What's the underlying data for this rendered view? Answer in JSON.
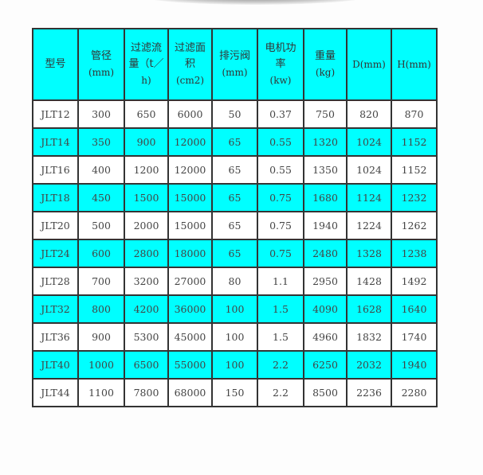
{
  "table": {
    "headers": [
      {
        "lines": [
          "型号"
        ]
      },
      {
        "lines": [
          "管径",
          "(mm)"
        ]
      },
      {
        "lines": [
          "过滤流",
          "量（t／",
          "h)"
        ]
      },
      {
        "lines": [
          "过滤面",
          "积",
          "(cm2)"
        ]
      },
      {
        "lines": [
          "排污阀",
          "(mm)"
        ]
      },
      {
        "lines": [
          "电机功",
          "率",
          "(kw)"
        ]
      },
      {
        "lines": [
          "重量",
          "(kg)"
        ]
      },
      {
        "lines": [
          "D(mm)"
        ]
      },
      {
        "lines": [
          "H(mm)"
        ]
      }
    ],
    "rows": [
      [
        "JLT12",
        "300",
        "650",
        "6000",
        "50",
        "0.37",
        "750",
        "820",
        "870"
      ],
      [
        "JLT14",
        "350",
        "900",
        "12000",
        "65",
        "0.55",
        "1320",
        "1024",
        "1152"
      ],
      [
        "JLT16",
        "400",
        "1200",
        "12000",
        "65",
        "0.55",
        "1350",
        "1024",
        "1152"
      ],
      [
        "JLT18",
        "450",
        "1500",
        "15000",
        "65",
        "0.75",
        "1680",
        "1124",
        "1232"
      ],
      [
        "JLT20",
        "500",
        "2000",
        "15000",
        "65",
        "0.75",
        "1940",
        "1224",
        "1262"
      ],
      [
        "JLT24",
        "600",
        "2800",
        "18000",
        "65",
        "0.75",
        "2480",
        "1328",
        "1238"
      ],
      [
        "JLT28",
        "700",
        "3200",
        "27000",
        "80",
        "1.1",
        "2950",
        "1428",
        "1492"
      ],
      [
        "JLT32",
        "800",
        "4200",
        "36000",
        "100",
        "1.5",
        "4090",
        "1628",
        "1640"
      ],
      [
        "JLT36",
        "900",
        "5300",
        "45000",
        "100",
        "1.5",
        "4960",
        "1832",
        "1740"
      ],
      [
        "JLT40",
        "1000",
        "6500",
        "55000",
        "100",
        "2.2",
        "6250",
        "2032",
        "1940"
      ],
      [
        "JLT44",
        "1100",
        "7800",
        "68000",
        "150",
        "2.2",
        "8500",
        "2236",
        "2280"
      ]
    ]
  },
  "colors": {
    "header_bg": "#00ffff",
    "alt_row_bg": "#00ffff",
    "border": "#333333"
  }
}
